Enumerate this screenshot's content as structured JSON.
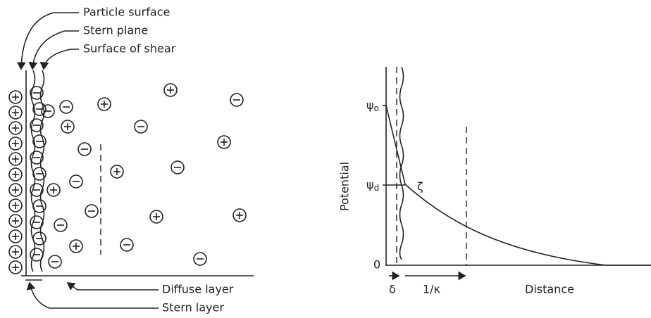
{
  "left_panel": {
    "labels": {
      "particle_surface": "Particle surface",
      "stern_plane": "Stern plane",
      "surface_of_shear": "Surface of shear",
      "diffuse_layer": "Diffuse layer",
      "stern_layer": "Stern layer"
    }
  },
  "right_panel": {
    "y_axis_label": "Potential",
    "x_axis_label": "Distance",
    "psi_0": {
      "symbol": "ψ",
      "subscript": "o"
    },
    "psi_d": {
      "symbol": "ψ",
      "subscript": "d"
    },
    "zeta": "ζ",
    "origin": "0",
    "delta": "δ",
    "debye_length": "1/κ"
  }
}
